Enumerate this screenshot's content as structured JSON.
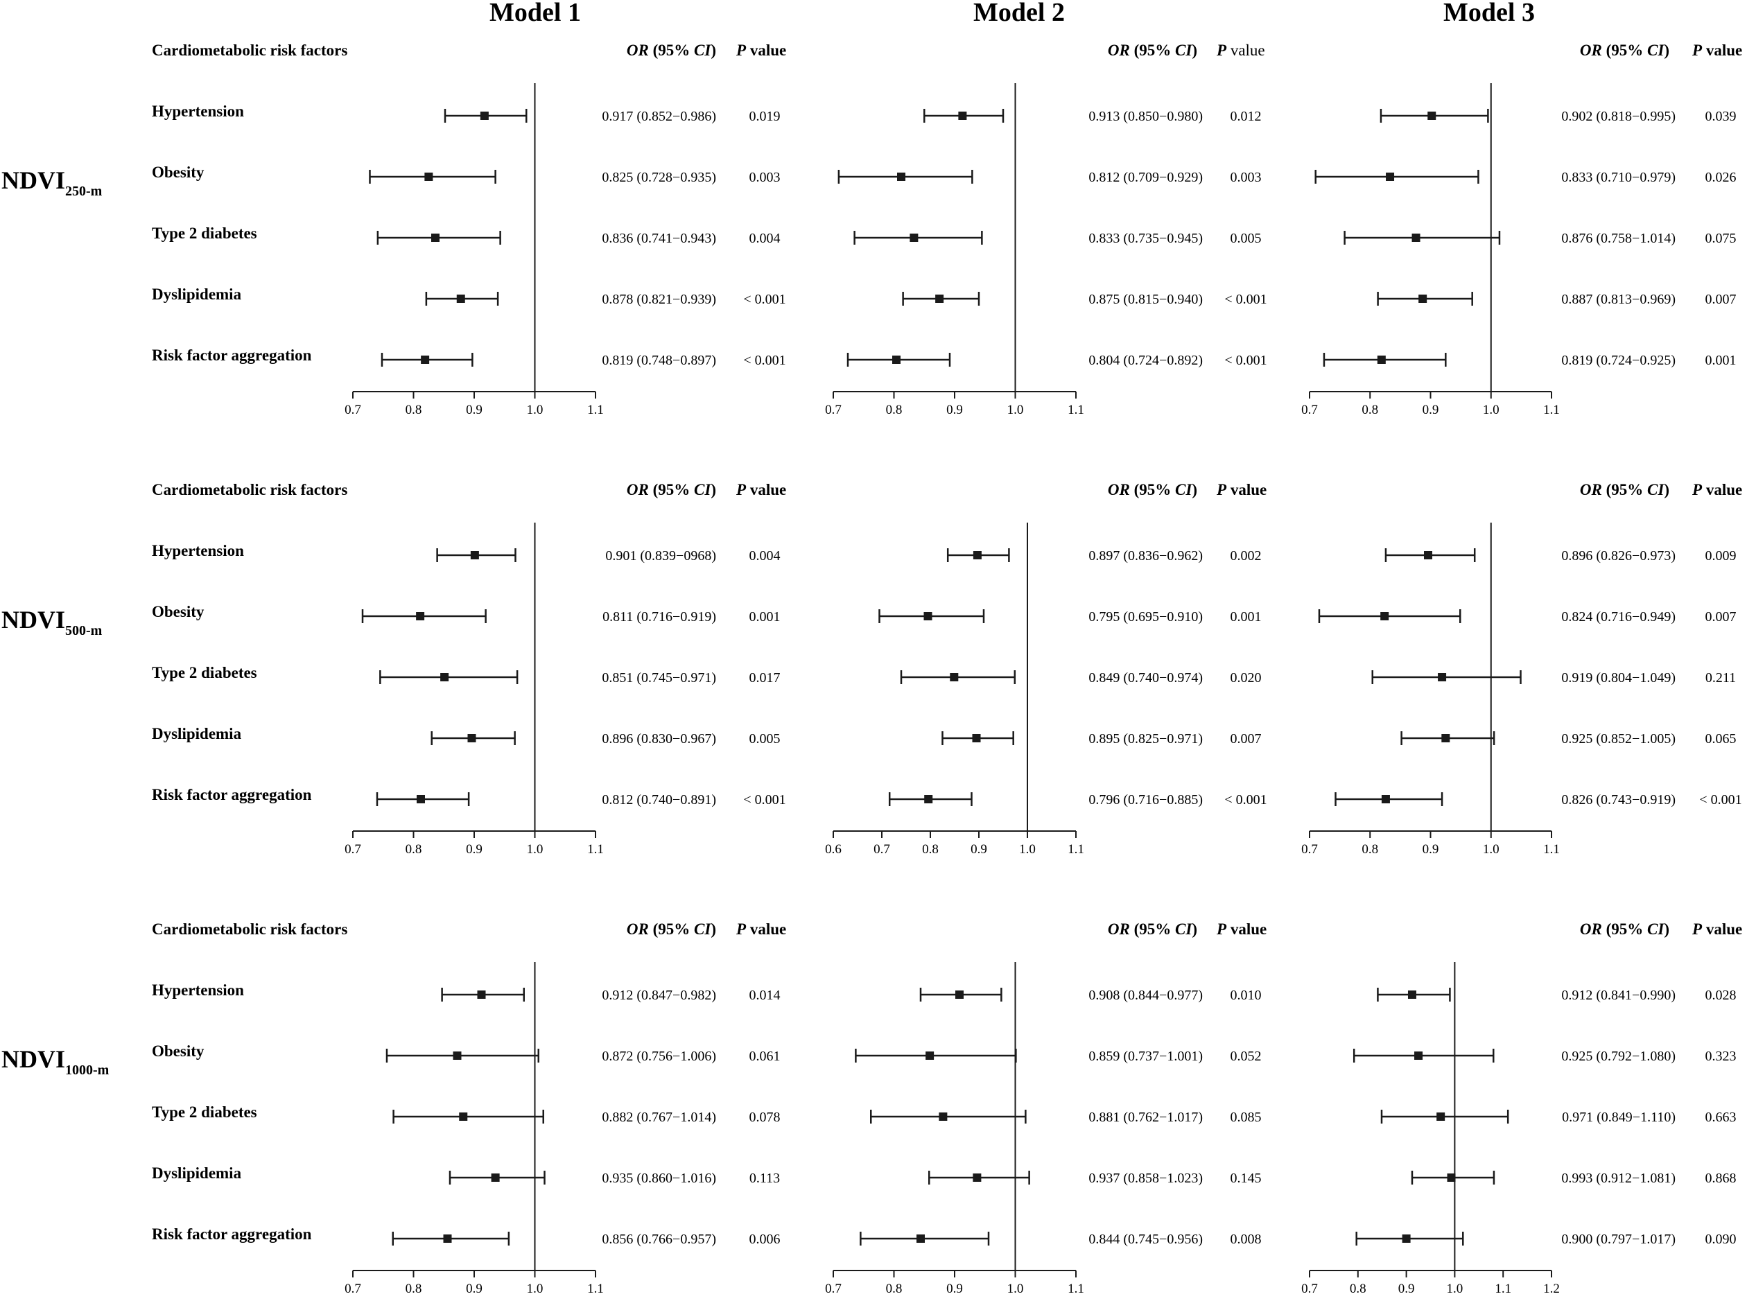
{
  "models": [
    "Model 1",
    "Model 2",
    "Model 3"
  ],
  "table_headers": {
    "risk_factors": "Cardiometabolic risk factors",
    "or_italic": "OR",
    "or_rest": " (95% ",
    "ci_italic": "CI",
    "ci_close": ")",
    "p_italic": "P",
    "p_rest": " value"
  },
  "chart_data": [
    {
      "type": "forest",
      "exposure": "NDVI",
      "exposure_sub": "250-m",
      "categories": [
        "Hypertension",
        "Obesity",
        "Type 2 diabetes",
        "Dyslipidemia",
        "Risk factor aggregation"
      ],
      "reference_line": 1.0,
      "panels": [
        {
          "model": "Model 1",
          "xlim": [
            0.7,
            1.1
          ],
          "ticks": [
            "0.7",
            "0.8",
            "0.9",
            "1.0",
            "1.1"
          ],
          "or": [
            0.917,
            0.825,
            0.836,
            0.878,
            0.819
          ],
          "lower": [
            0.852,
            0.728,
            0.741,
            0.821,
            0.748
          ],
          "upper": [
            0.986,
            0.935,
            0.943,
            0.939,
            0.897
          ],
          "or_text": [
            "0.917 (0.852−0.986)",
            "0.825 (0.728−0.935)",
            "0.836 (0.741−0.943)",
            "0.878 (0.821−0.939)",
            "0.819 (0.748−0.897)"
          ],
          "p_text": [
            "0.019",
            "0.003",
            "0.004",
            "< 0.001",
            "< 0.001"
          ]
        },
        {
          "model": "Model 2",
          "xlim": [
            0.7,
            1.1
          ],
          "ticks": [
            "0.7",
            "0.8",
            "0.9",
            "1.0",
            "1.1"
          ],
          "or": [
            0.913,
            0.812,
            0.833,
            0.875,
            0.804
          ],
          "lower": [
            0.85,
            0.709,
            0.735,
            0.815,
            0.724
          ],
          "upper": [
            0.98,
            0.929,
            0.945,
            0.94,
            0.892
          ],
          "or_text": [
            "0.913 (0.850−0.980)",
            "0.812 (0.709−0.929)",
            "0.833 (0.735−0.945)",
            "0.875 (0.815−0.940)",
            "0.804 (0.724−0.892)"
          ],
          "p_text": [
            "0.012",
            "0.003",
            "0.005",
            "< 0.001",
            "< 0.001"
          ]
        },
        {
          "model": "Model 3",
          "xlim": [
            0.7,
            1.1
          ],
          "ticks": [
            "0.7",
            "0.8",
            "0.9",
            "1.0",
            "1.1"
          ],
          "or": [
            0.902,
            0.833,
            0.876,
            0.887,
            0.819
          ],
          "lower": [
            0.818,
            0.71,
            0.758,
            0.813,
            0.724
          ],
          "upper": [
            0.995,
            0.979,
            1.014,
            0.969,
            0.925
          ],
          "or_text": [
            "0.902 (0.818−0.995)",
            "0.833 (0.710−0.979)",
            "0.876 (0.758−1.014)",
            "0.887 (0.813−0.969)",
            "0.819 (0.724−0.925)"
          ],
          "p_text": [
            "0.039",
            "0.026",
            "0.075",
            "0.007",
            "0.001"
          ]
        }
      ]
    },
    {
      "type": "forest",
      "exposure": "NDVI",
      "exposure_sub": "500-m",
      "categories": [
        "Hypertension",
        "Obesity",
        "Type 2 diabetes",
        "Dyslipidemia",
        "Risk factor aggregation"
      ],
      "reference_line": 1.0,
      "panels": [
        {
          "model": "Model 1",
          "xlim": [
            0.7,
            1.1
          ],
          "ticks": [
            "0.7",
            "0.8",
            "0.9",
            "1.0",
            "1.1"
          ],
          "or": [
            0.901,
            0.811,
            0.851,
            0.896,
            0.812
          ],
          "lower": [
            0.839,
            0.716,
            0.745,
            0.83,
            0.74
          ],
          "upper": [
            0.968,
            0.919,
            0.971,
            0.967,
            0.891
          ],
          "or_text": [
            "0.901 (0.839−0968)",
            "0.811 (0.716−0.919)",
            "0.851 (0.745−0.971)",
            "0.896 (0.830−0.967)",
            "0.812 (0.740−0.891)"
          ],
          "p_text": [
            "0.004",
            "0.001",
            "0.017",
            "0.005",
            "< 0.001"
          ]
        },
        {
          "model": "Model 2",
          "xlim": [
            0.6,
            1.1
          ],
          "ticks": [
            "0.6",
            "0.7",
            "0.8",
            "0.9",
            "1.0",
            "1.1"
          ],
          "or": [
            0.897,
            0.795,
            0.849,
            0.895,
            0.796
          ],
          "lower": [
            0.836,
            0.695,
            0.74,
            0.825,
            0.716
          ],
          "upper": [
            0.962,
            0.91,
            0.974,
            0.971,
            0.885
          ],
          "or_text": [
            "0.897 (0.836−0.962)",
            "0.795 (0.695−0.910)",
            "0.849 (0.740−0.974)",
            "0.895 (0.825−0.971)",
            "0.796 (0.716−0.885)"
          ],
          "p_text": [
            "0.002",
            "0.001",
            "0.020",
            "0.007",
            "< 0.001"
          ]
        },
        {
          "model": "Model 3",
          "xlim": [
            0.7,
            1.1
          ],
          "ticks": [
            "0.7",
            "0.8",
            "0.9",
            "1.0",
            "1.1"
          ],
          "or": [
            0.896,
            0.824,
            0.919,
            0.925,
            0.826
          ],
          "lower": [
            0.826,
            0.716,
            0.804,
            0.852,
            0.743
          ],
          "upper": [
            0.973,
            0.949,
            1.049,
            1.005,
            0.919
          ],
          "or_text": [
            "0.896 (0.826−0.973)",
            "0.824 (0.716−0.949)",
            "0.919 (0.804−1.049)",
            "0.925 (0.852−1.005)",
            "0.826 (0.743−0.919)"
          ],
          "p_text": [
            "0.009",
            "0.007",
            "0.211",
            "0.065",
            "< 0.001"
          ]
        }
      ]
    },
    {
      "type": "forest",
      "exposure": "NDVI",
      "exposure_sub": "1000-m",
      "categories": [
        "Hypertension",
        "Obesity",
        "Type 2 diabetes",
        "Dyslipidemia",
        "Risk factor aggregation"
      ],
      "reference_line": 1.0,
      "panels": [
        {
          "model": "Model 1",
          "xlim": [
            0.7,
            1.1
          ],
          "ticks": [
            "0.7",
            "0.8",
            "0.9",
            "1.0",
            "1.1"
          ],
          "or": [
            0.912,
            0.872,
            0.882,
            0.935,
            0.856
          ],
          "lower": [
            0.847,
            0.756,
            0.767,
            0.86,
            0.766
          ],
          "upper": [
            0.982,
            1.006,
            1.014,
            1.016,
            0.957
          ],
          "or_text": [
            "0.912 (0.847−0.982)",
            "0.872 (0.756−1.006)",
            "0.882 (0.767−1.014)",
            "0.935 (0.860−1.016)",
            "0.856 (0.766−0.957)"
          ],
          "p_text": [
            "0.014",
            "0.061",
            "0.078",
            "0.113",
            "0.006"
          ]
        },
        {
          "model": "Model 2",
          "xlim": [
            0.7,
            1.1
          ],
          "ticks": [
            "0.7",
            "0.8",
            "0.9",
            "1.0",
            "1.1"
          ],
          "or": [
            0.908,
            0.859,
            0.881,
            0.937,
            0.844
          ],
          "lower": [
            0.844,
            0.737,
            0.762,
            0.858,
            0.745
          ],
          "upper": [
            0.977,
            1.001,
            1.017,
            1.023,
            0.956
          ],
          "or_text": [
            "0.908 (0.844−0.977)",
            "0.859 (0.737−1.001)",
            "0.881 (0.762−1.017)",
            "0.937 (0.858−1.023)",
            "0.844 (0.745−0.956)"
          ],
          "p_text": [
            "0.010",
            "0.052",
            "0.085",
            "0.145",
            "0.008"
          ]
        },
        {
          "model": "Model 3",
          "xlim": [
            0.7,
            1.2
          ],
          "ticks": [
            "0.7",
            "0.8",
            "0.9",
            "1.0",
            "1.1",
            "1.2"
          ],
          "or": [
            0.912,
            0.925,
            0.971,
            0.993,
            0.9
          ],
          "lower": [
            0.841,
            0.792,
            0.849,
            0.912,
            0.797
          ],
          "upper": [
            0.99,
            1.08,
            1.11,
            1.081,
            1.017
          ],
          "or_text": [
            "0.912 (0.841−0.990)",
            "0.925 (0.792−1.080)",
            "0.971 (0.849−1.110)",
            "0.993 (0.912−1.081)",
            "0.900 (0.797−1.017)"
          ],
          "p_text": [
            "0.028",
            "0.323",
            "0.663",
            "0.868",
            "0.090"
          ]
        }
      ]
    }
  ]
}
